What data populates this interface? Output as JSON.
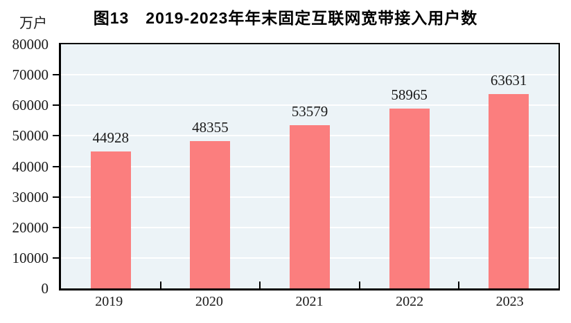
{
  "chart_data": {
    "type": "bar",
    "title": "图13　2019-2023年年末固定互联网宽带接入用户数",
    "categories": [
      "2019",
      "2020",
      "2021",
      "2022",
      "2023"
    ],
    "values": [
      44928,
      48355,
      53579,
      58965,
      63631
    ],
    "value_labels": [
      "44928",
      "48355",
      "53579",
      "58965",
      "63631"
    ],
    "xlabel": "",
    "ylabel": "万户",
    "ylim": [
      0,
      80000
    ],
    "ytick_interval": 10000,
    "yticks": [
      0,
      10000,
      20000,
      30000,
      40000,
      50000,
      60000,
      70000,
      80000
    ],
    "grid": true,
    "legend": "none",
    "colors": {
      "bar": "#FB7E7E",
      "plot_background": "#ECF3F7",
      "gridline": "#FFFFFF",
      "axis": "#000000",
      "text": "#1A1A1A"
    }
  }
}
